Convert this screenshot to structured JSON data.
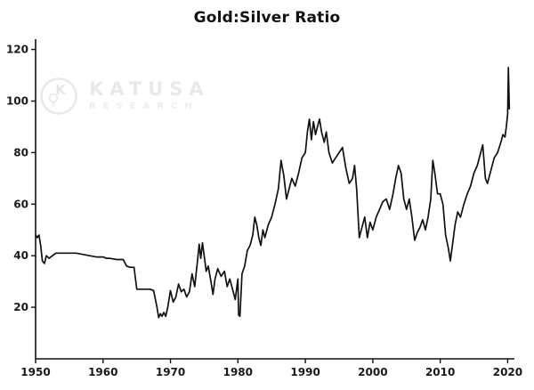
{
  "watermark": {
    "brand_top": "KATUSA",
    "brand_bottom": "RESEARCH",
    "logo_letter": "K"
  },
  "chart_data": {
    "type": "line",
    "title": "Gold:Silver Ratio",
    "xlabel": "",
    "ylabel": "",
    "xlim": [
      1950,
      2021
    ],
    "ylim": [
      0,
      124
    ],
    "x_ticks": [
      1950,
      1960,
      1970,
      1980,
      1990,
      2000,
      2010,
      2020
    ],
    "y_ticks": [
      20,
      40,
      60,
      80,
      100,
      120
    ],
    "grid": false,
    "legend": "none",
    "line_color": "#111111",
    "axis_color": "#111111",
    "background": "#ffffff",
    "series": [
      {
        "name": "Gold:Silver Ratio",
        "points": [
          [
            1950.0,
            48
          ],
          [
            1950.25,
            47
          ],
          [
            1950.5,
            48
          ],
          [
            1950.75,
            44
          ],
          [
            1951.0,
            38
          ],
          [
            1951.3,
            37
          ],
          [
            1951.6,
            40
          ],
          [
            1952.0,
            39
          ],
          [
            1952.5,
            40
          ],
          [
            1953.0,
            41
          ],
          [
            1954.0,
            41
          ],
          [
            1955.0,
            41
          ],
          [
            1956.0,
            41
          ],
          [
            1957.0,
            40.5
          ],
          [
            1958.0,
            40
          ],
          [
            1959.0,
            39.5
          ],
          [
            1960.0,
            39.5
          ],
          [
            1960.5,
            39
          ],
          [
            1961.0,
            39
          ],
          [
            1962.0,
            38.5
          ],
          [
            1963.0,
            38.5
          ],
          [
            1963.5,
            36
          ],
          [
            1964.0,
            35.5
          ],
          [
            1964.6,
            35.5
          ],
          [
            1965.0,
            27
          ],
          [
            1966.0,
            27
          ],
          [
            1967.0,
            27
          ],
          [
            1967.5,
            26.5
          ],
          [
            1968.0,
            20
          ],
          [
            1968.25,
            16
          ],
          [
            1968.5,
            17.5
          ],
          [
            1968.75,
            16.5
          ],
          [
            1969.0,
            18
          ],
          [
            1969.3,
            16.5
          ],
          [
            1969.6,
            20
          ],
          [
            1970.0,
            26.5
          ],
          [
            1970.4,
            22
          ],
          [
            1970.8,
            24
          ],
          [
            1971.2,
            29
          ],
          [
            1971.6,
            26
          ],
          [
            1972.0,
            27
          ],
          [
            1972.4,
            24
          ],
          [
            1972.8,
            26
          ],
          [
            1973.2,
            33
          ],
          [
            1973.6,
            28
          ],
          [
            1974.0,
            38
          ],
          [
            1974.25,
            44.5
          ],
          [
            1974.5,
            39
          ],
          [
            1974.75,
            45
          ],
          [
            1975.0,
            40
          ],
          [
            1975.3,
            34
          ],
          [
            1975.6,
            36
          ],
          [
            1976.0,
            30
          ],
          [
            1976.3,
            25
          ],
          [
            1976.6,
            31
          ],
          [
            1977.0,
            35
          ],
          [
            1977.5,
            32
          ],
          [
            1978.0,
            34
          ],
          [
            1978.4,
            28
          ],
          [
            1978.8,
            31
          ],
          [
            1979.2,
            27
          ],
          [
            1979.6,
            23
          ],
          [
            1980.0,
            31
          ],
          [
            1980.1,
            17
          ],
          [
            1980.3,
            16.5
          ],
          [
            1980.6,
            33
          ],
          [
            1981.0,
            36
          ],
          [
            1981.4,
            42
          ],
          [
            1981.8,
            44
          ],
          [
            1982.2,
            48
          ],
          [
            1982.5,
            55
          ],
          [
            1982.8,
            52
          ],
          [
            1983.1,
            47
          ],
          [
            1983.4,
            44
          ],
          [
            1983.7,
            50
          ],
          [
            1984.0,
            47
          ],
          [
            1984.5,
            52
          ],
          [
            1985.0,
            55
          ],
          [
            1985.5,
            60
          ],
          [
            1986.0,
            66
          ],
          [
            1986.4,
            77
          ],
          [
            1986.8,
            71
          ],
          [
            1987.2,
            62
          ],
          [
            1987.6,
            66
          ],
          [
            1988.0,
            70
          ],
          [
            1988.5,
            67
          ],
          [
            1989.0,
            72
          ],
          [
            1989.5,
            78
          ],
          [
            1990.0,
            80
          ],
          [
            1990.3,
            88
          ],
          [
            1990.6,
            93
          ],
          [
            1990.9,
            85
          ],
          [
            1991.2,
            92
          ],
          [
            1991.5,
            87
          ],
          [
            1991.8,
            90
          ],
          [
            1992.1,
            93
          ],
          [
            1992.4,
            88
          ],
          [
            1992.8,
            84
          ],
          [
            1993.1,
            88
          ],
          [
            1993.5,
            80
          ],
          [
            1994.0,
            76
          ],
          [
            1994.5,
            78
          ],
          [
            1995.0,
            80
          ],
          [
            1995.5,
            82
          ],
          [
            1996.0,
            74
          ],
          [
            1996.5,
            68
          ],
          [
            1997.0,
            70
          ],
          [
            1997.3,
            75
          ],
          [
            1997.6,
            66
          ],
          [
            1998.0,
            47
          ],
          [
            1998.4,
            51
          ],
          [
            1998.8,
            55
          ],
          [
            1999.2,
            47
          ],
          [
            1999.6,
            53
          ],
          [
            2000.0,
            50
          ],
          [
            2000.5,
            55
          ],
          [
            2001.0,
            58
          ],
          [
            2001.5,
            61
          ],
          [
            2002.0,
            62
          ],
          [
            2002.5,
            58
          ],
          [
            2003.0,
            64
          ],
          [
            2003.4,
            70
          ],
          [
            2003.8,
            75
          ],
          [
            2004.2,
            72
          ],
          [
            2004.6,
            62
          ],
          [
            2005.0,
            58
          ],
          [
            2005.4,
            62
          ],
          [
            2005.8,
            55
          ],
          [
            2006.2,
            46
          ],
          [
            2006.6,
            49
          ],
          [
            2007.0,
            51
          ],
          [
            2007.4,
            54
          ],
          [
            2007.8,
            50
          ],
          [
            2008.2,
            55
          ],
          [
            2008.6,
            62
          ],
          [
            2008.9,
            77
          ],
          [
            2009.2,
            72
          ],
          [
            2009.6,
            64
          ],
          [
            2010.0,
            64
          ],
          [
            2010.4,
            60
          ],
          [
            2010.8,
            48
          ],
          [
            2011.2,
            43
          ],
          [
            2011.5,
            38
          ],
          [
            2011.8,
            44
          ],
          [
            2012.2,
            52
          ],
          [
            2012.6,
            57
          ],
          [
            2013.0,
            55
          ],
          [
            2013.5,
            60
          ],
          [
            2014.0,
            64
          ],
          [
            2014.5,
            67
          ],
          [
            2015.0,
            72
          ],
          [
            2015.5,
            75
          ],
          [
            2016.0,
            80
          ],
          [
            2016.3,
            83
          ],
          [
            2016.7,
            70
          ],
          [
            2017.0,
            68
          ],
          [
            2017.5,
            73
          ],
          [
            2018.0,
            78
          ],
          [
            2018.5,
            80
          ],
          [
            2019.0,
            84
          ],
          [
            2019.3,
            87
          ],
          [
            2019.6,
            86
          ],
          [
            2019.8,
            90
          ],
          [
            2020.0,
            95
          ],
          [
            2020.1,
            113
          ],
          [
            2020.25,
            97
          ]
        ]
      }
    ]
  }
}
